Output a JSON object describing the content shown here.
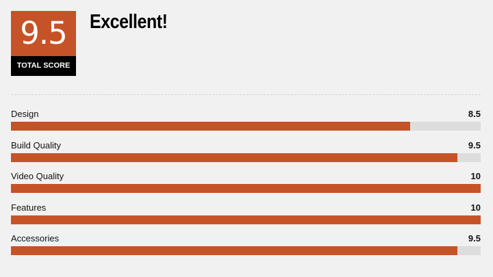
{
  "summary": {
    "score": "9.5",
    "score_label": "TOTAL SCORE",
    "verdict": "Excellent!"
  },
  "colors": {
    "accent": "#c65327",
    "track": "#dddddd",
    "score_label_bg": "#000000",
    "background": "#f1f1f1"
  },
  "rating_max": 10,
  "criteria": [
    {
      "label": "Design",
      "value": "8.5"
    },
    {
      "label": "Build Quality",
      "value": "9.5"
    },
    {
      "label": "Video Quality",
      "value": "10"
    },
    {
      "label": "Features",
      "value": "10"
    },
    {
      "label": "Accessories",
      "value": "9.5"
    }
  ]
}
